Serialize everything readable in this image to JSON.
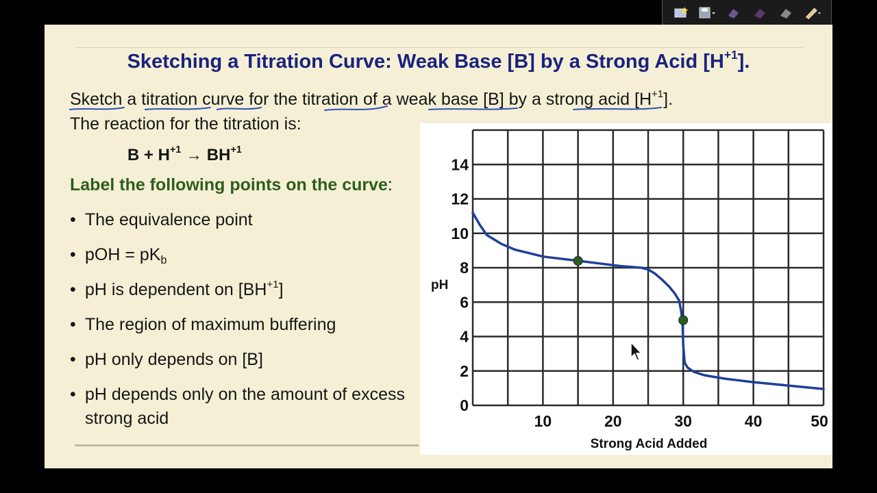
{
  "toolbar": {
    "icons": [
      "star-icon",
      "save-icon",
      "camera-icon",
      "marker-icon",
      "eraser-icon",
      "pen-icon"
    ]
  },
  "slide": {
    "title_main": "Sketching a Titration Curve: Weak Base [B] by a Strong Acid [H",
    "title_sup": "+1",
    "title_end": "].",
    "line1_main": "Sketch a titration curve for the titration of a weak base [B] by a strong acid [H",
    "line1_sup": "+1",
    "line1_end": "].",
    "line2": "The reaction for the titration is:",
    "reaction_left": "B + H",
    "reaction_sup1": "+1",
    "reaction_arrow": " → BH",
    "reaction_sup2": "+1",
    "label_heading": "Label the following points on the curve",
    "label_colon": ":",
    "bullets": [
      {
        "text": "The equivalence point"
      },
      {
        "text": "pOH = pK",
        "sub": "b"
      },
      {
        "text": "pH is dependent on [BH",
        "sup": "+1",
        "end": "]"
      },
      {
        "text": "The region of maximum buffering"
      },
      {
        "text": "pH only depends on [B]"
      },
      {
        "text": "pH depends only on the amount of excess strong acid"
      }
    ],
    "bullet_char": "•",
    "accent_colors": {
      "title": "#1a237e",
      "heading": "#2e5d1e",
      "curve": "#1f3f9a",
      "point": "#2e5d1e",
      "ink": "#2f4fb8"
    }
  },
  "chart_data": {
    "type": "line",
    "xlabel": "Strong Acid Added",
    "ylabel": "pH",
    "xlim": [
      0,
      50
    ],
    "ylim": [
      0,
      16
    ],
    "x_ticks": [
      10,
      20,
      30,
      40,
      50
    ],
    "y_ticks": [
      0,
      2,
      4,
      6,
      8,
      10,
      12,
      14
    ],
    "grid": true,
    "x_grid_step": 5,
    "y_grid_step": 2,
    "series": [
      {
        "x": [
          0,
          1,
          2,
          4,
          6,
          8,
          10,
          12,
          15,
          18,
          21,
          24,
          25,
          26,
          27,
          28,
          28.8,
          29.4,
          29.7,
          29.9,
          30,
          30.2,
          30.6,
          31.5,
          33,
          36,
          40,
          45,
          50
        ],
        "y": [
          11.2,
          10.5,
          9.9,
          9.4,
          9.05,
          8.85,
          8.65,
          8.55,
          8.4,
          8.25,
          8.1,
          8.0,
          7.9,
          7.65,
          7.3,
          6.9,
          6.5,
          6.1,
          5.5,
          4.8,
          3.5,
          2.5,
          2.2,
          1.95,
          1.75,
          1.55,
          1.35,
          1.15,
          0.95
        ]
      }
    ],
    "points": [
      {
        "x": 15,
        "y": 8.4
      },
      {
        "x": 30,
        "y": 4.95
      }
    ]
  }
}
